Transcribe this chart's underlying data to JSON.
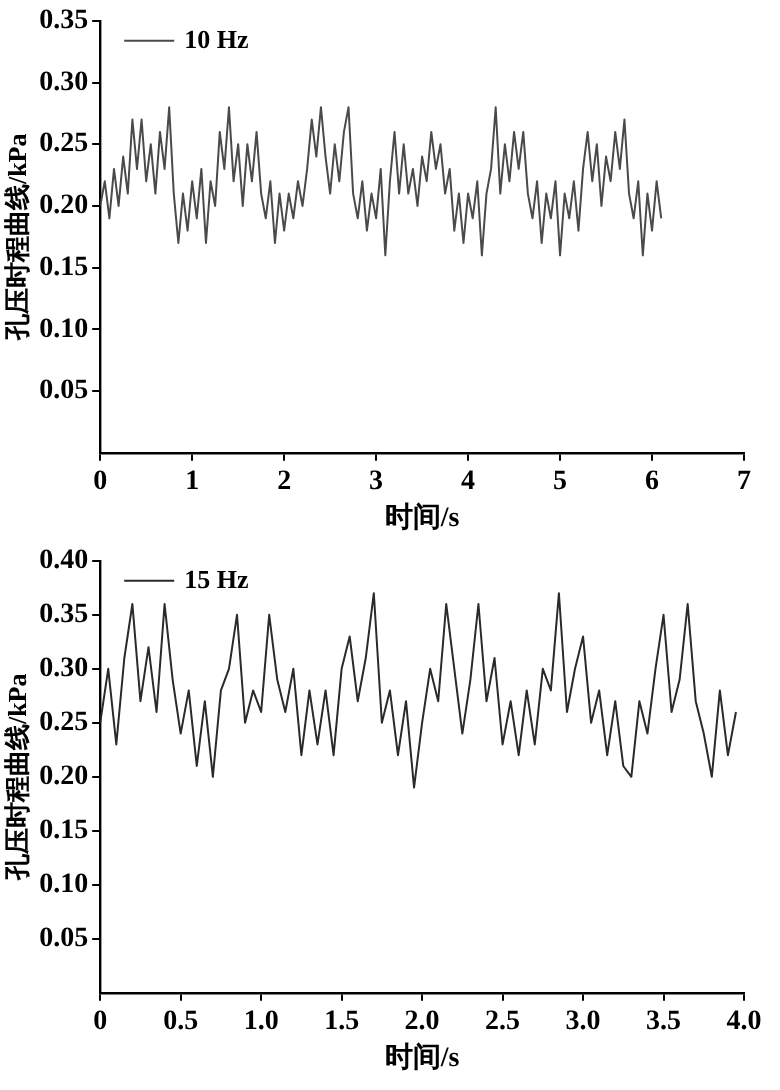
{
  "chart_data": [
    {
      "type": "line",
      "xlabel": "时间/s",
      "ylabel": "孔压时程曲线/kPa",
      "legend": "top left",
      "marker": "none",
      "line_style": "solid",
      "grid": false,
      "xlim": [
        0,
        7
      ],
      "xticks": [
        0,
        1,
        2,
        3,
        4,
        5,
        6,
        7
      ],
      "ylim": [
        0,
        0.35
      ],
      "yticks": [
        0.05,
        {
          "value": 0.1,
          "label": "0.10"
        },
        0.15,
        {
          "value": 0.2,
          "label": "0.20"
        },
        0.25,
        {
          "value": 0.3,
          "label": "0.30"
        },
        0.35
      ],
      "series": [
        {
          "name": "10 Hz",
          "color": "#4a4a4a",
          "x": [
            0,
            0.05,
            0.1,
            0.15,
            0.2,
            0.25,
            0.3,
            0.35,
            0.4,
            0.45,
            0.5,
            0.55,
            0.6,
            0.65,
            0.7,
            0.75,
            0.8,
            0.85,
            0.9,
            0.95,
            1,
            1.05,
            1.1,
            1.15,
            1.2,
            1.25,
            1.3,
            1.35,
            1.4,
            1.45,
            1.5,
            1.55,
            1.6,
            1.65,
            1.7,
            1.75,
            1.8,
            1.85,
            1.9,
            1.95,
            2,
            2.05,
            2.1,
            2.15,
            2.2,
            2.25,
            2.3,
            2.35,
            2.4,
            2.45,
            2.5,
            2.55,
            2.6,
            2.65,
            2.7,
            2.75,
            2.8,
            2.85,
            2.9,
            2.95,
            3,
            3.05,
            3.1,
            3.15,
            3.2,
            3.25,
            3.3,
            3.35,
            3.4,
            3.45,
            3.5,
            3.55,
            3.6,
            3.65,
            3.7,
            3.75,
            3.8,
            3.85,
            3.9,
            3.95,
            4,
            4.05,
            4.1,
            4.15,
            4.2,
            4.25,
            4.3,
            4.35,
            4.4,
            4.45,
            4.5,
            4.55,
            4.6,
            4.65,
            4.7,
            4.75,
            4.8,
            4.85,
            4.9,
            4.95,
            5,
            5.05,
            5.1,
            5.15,
            5.2,
            5.25,
            5.3,
            5.35,
            5.4,
            5.45,
            5.5,
            5.55,
            5.6,
            5.65,
            5.7,
            5.75,
            5.8,
            5.85,
            5.9,
            5.95,
            6,
            6.05,
            6.1
          ],
          "values": [
            0.2,
            0.22,
            0.19,
            0.23,
            0.2,
            0.24,
            0.21,
            0.27,
            0.23,
            0.27,
            0.22,
            0.25,
            0.21,
            0.26,
            0.23,
            0.28,
            0.21,
            0.17,
            0.21,
            0.18,
            0.22,
            0.19,
            0.23,
            0.17,
            0.22,
            0.2,
            0.26,
            0.23,
            0.28,
            0.22,
            0.25,
            0.2,
            0.25,
            0.22,
            0.26,
            0.21,
            0.19,
            0.22,
            0.17,
            0.21,
            0.18,
            0.21,
            0.19,
            0.22,
            0.2,
            0.23,
            0.27,
            0.24,
            0.28,
            0.24,
            0.21,
            0.25,
            0.22,
            0.26,
            0.28,
            0.21,
            0.19,
            0.22,
            0.18,
            0.21,
            0.19,
            0.23,
            0.16,
            0.22,
            0.26,
            0.21,
            0.25,
            0.21,
            0.23,
            0.2,
            0.24,
            0.22,
            0.26,
            0.23,
            0.25,
            0.21,
            0.23,
            0.18,
            0.21,
            0.17,
            0.21,
            0.19,
            0.22,
            0.16,
            0.21,
            0.23,
            0.28,
            0.21,
            0.25,
            0.22,
            0.26,
            0.23,
            0.26,
            0.21,
            0.19,
            0.22,
            0.17,
            0.21,
            0.19,
            0.22,
            0.16,
            0.21,
            0.19,
            0.22,
            0.18,
            0.23,
            0.26,
            0.22,
            0.25,
            0.2,
            0.24,
            0.22,
            0.26,
            0.23,
            0.27,
            0.21,
            0.19,
            0.22,
            0.16,
            0.21,
            0.18,
            0.22,
            0.19
          ]
        }
      ]
    },
    {
      "type": "line",
      "xlabel": "时间/s",
      "ylabel": "孔压时程曲线/kPa",
      "legend": "top left",
      "marker": "none",
      "line_style": "solid",
      "grid": false,
      "xlim": [
        0,
        4
      ],
      "xticks": [
        0,
        0.5,
        {
          "value": 1,
          "label": "1.0"
        },
        1.5,
        {
          "value": 2,
          "label": "2.0"
        },
        2.5,
        {
          "value": 3,
          "label": "3.0"
        },
        3.5,
        {
          "value": 4,
          "label": "4.0"
        }
      ],
      "ylim": [
        0,
        0.4
      ],
      "yticks": [
        0.05,
        {
          "value": 0.1,
          "label": "0.10"
        },
        0.15,
        {
          "value": 0.2,
          "label": "0.20"
        },
        0.25,
        {
          "value": 0.3,
          "label": "0.30"
        },
        0.35,
        {
          "value": 0.4,
          "label": "0.40"
        }
      ],
      "series": [
        {
          "name": "15 Hz",
          "color": "#2a2a2a",
          "x": [
            0,
            0.05,
            0.1,
            0.15,
            0.2,
            0.25,
            0.3,
            0.35,
            0.4,
            0.45,
            0.5,
            0.55,
            0.6,
            0.65,
            0.7,
            0.75,
            0.8,
            0.85,
            0.9,
            0.95,
            1,
            1.05,
            1.1,
            1.15,
            1.2,
            1.25,
            1.3,
            1.35,
            1.4,
            1.45,
            1.5,
            1.55,
            1.6,
            1.65,
            1.7,
            1.75,
            1.8,
            1.85,
            1.9,
            1.95,
            2,
            2.05,
            2.1,
            2.15,
            2.2,
            2.25,
            2.3,
            2.35,
            2.4,
            2.45,
            2.5,
            2.55,
            2.6,
            2.65,
            2.7,
            2.75,
            2.8,
            2.85,
            2.9,
            2.95,
            3,
            3.05,
            3.1,
            3.15,
            3.2,
            3.25,
            3.3,
            3.35,
            3.4,
            3.45,
            3.5,
            3.55,
            3.6,
            3.65,
            3.7,
            3.75,
            3.8,
            3.85,
            3.9,
            3.95
          ],
          "values": [
            0.25,
            0.3,
            0.23,
            0.31,
            0.36,
            0.27,
            0.32,
            0.26,
            0.36,
            0.29,
            0.24,
            0.28,
            0.21,
            0.27,
            0.2,
            0.28,
            0.3,
            0.35,
            0.25,
            0.28,
            0.26,
            0.35,
            0.29,
            0.26,
            0.3,
            0.22,
            0.28,
            0.23,
            0.28,
            0.22,
            0.3,
            0.33,
            0.27,
            0.31,
            0.37,
            0.25,
            0.28,
            0.22,
            0.27,
            0.19,
            0.25,
            0.3,
            0.27,
            0.36,
            0.3,
            0.24,
            0.29,
            0.36,
            0.27,
            0.31,
            0.23,
            0.27,
            0.22,
            0.28,
            0.23,
            0.3,
            0.28,
            0.37,
            0.26,
            0.3,
            0.33,
            0.25,
            0.28,
            0.22,
            0.27,
            0.21,
            0.2,
            0.27,
            0.24,
            0.3,
            0.35,
            0.26,
            0.29,
            0.36,
            0.27,
            0.24,
            0.2,
            0.28,
            0.22,
            0.26
          ]
        }
      ]
    }
  ]
}
